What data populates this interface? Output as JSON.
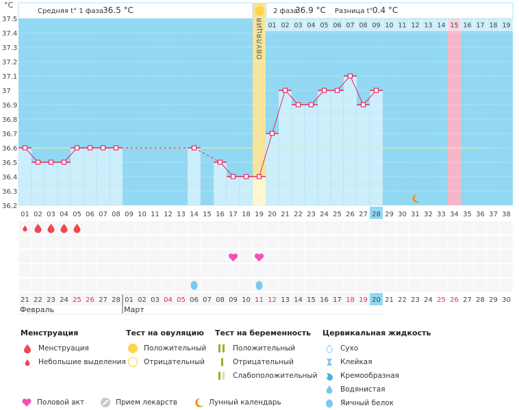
{
  "chart_data": {
    "type": "line",
    "title": "",
    "unit_label": "°C",
    "ylabel": "°C",
    "xlabel": "",
    "ylim": [
      36.2,
      37.5
    ],
    "y_ticks": [
      "37.5",
      "37.4",
      "37.3",
      "37.2",
      "37.1",
      "37",
      "36.9",
      "36.8",
      "36.7",
      "36.6",
      "36.5",
      "36.4",
      "36.3",
      "36.2"
    ],
    "y_tick_values": [
      37.5,
      37.4,
      37.3,
      37.2,
      37.1,
      37.0,
      36.9,
      36.8,
      36.7,
      36.6,
      36.5,
      36.4,
      36.3,
      36.2
    ],
    "grid": true,
    "cycle_days": [
      "01",
      "02",
      "03",
      "04",
      "05",
      "06",
      "07",
      "08",
      "09",
      "10",
      "11",
      "12",
      "13",
      "14",
      "15",
      "16",
      "17",
      "18",
      "19",
      "20",
      "21",
      "22",
      "23",
      "24",
      "25",
      "26",
      "27",
      "28",
      "29",
      "30",
      "31",
      "32",
      "33",
      "34",
      "35",
      "36",
      "37",
      "38"
    ],
    "today_cycle_day": "28",
    "series": [
      {
        "name": "Базальная температура",
        "color": "#e8265e",
        "values": [
          36.6,
          36.5,
          36.5,
          36.5,
          36.6,
          36.6,
          36.6,
          36.6,
          null,
          null,
          null,
          null,
          null,
          36.6,
          null,
          36.5,
          36.4,
          36.4,
          36.4,
          36.7,
          37.0,
          36.9,
          36.9,
          37.0,
          37.0,
          37.1,
          36.9,
          37.0,
          null,
          null,
          null,
          null,
          null,
          null,
          null,
          null,
          null,
          null
        ]
      }
    ],
    "cover_line": {
      "value": 36.6,
      "from_day": "01",
      "to_day": "37",
      "color": "#f5e7a0"
    },
    "ovulation_day": "19",
    "ovulation_label": "ОВУЛЯЦИЯ",
    "phase2_day_labels": [
      "01",
      "02",
      "03",
      "04",
      "05",
      "06",
      "07",
      "08",
      "09",
      "10",
      "11",
      "12",
      "13",
      "14",
      "15",
      "16",
      "17",
      "18",
      "19"
    ],
    "expected_period_phase2_day": "15",
    "moon_day": "31",
    "header": {
      "phase1_label": "Средняя t° 1 фаза",
      "phase1_value": "36.5 °C",
      "phase2_label": "2 фаза",
      "phase2_value": "36.9 °C",
      "diff_label": "Разница t°",
      "diff_value": "0.4 °C"
    },
    "calendar_dates": [
      {
        "d": "21",
        "red": false
      },
      {
        "d": "22",
        "red": false
      },
      {
        "d": "23",
        "red": false
      },
      {
        "d": "24",
        "red": false
      },
      {
        "d": "25",
        "red": true
      },
      {
        "d": "26",
        "red": true
      },
      {
        "d": "27",
        "red": false
      },
      {
        "d": "28",
        "red": false
      },
      {
        "d": "01",
        "red": false
      },
      {
        "d": "02",
        "red": false
      },
      {
        "d": "03",
        "red": false
      },
      {
        "d": "04",
        "red": true
      },
      {
        "d": "05",
        "red": true
      },
      {
        "d": "06",
        "red": false
      },
      {
        "d": "07",
        "red": false
      },
      {
        "d": "08",
        "red": false
      },
      {
        "d": "09",
        "red": false
      },
      {
        "d": "10",
        "red": false
      },
      {
        "d": "11",
        "red": true
      },
      {
        "d": "12",
        "red": true
      },
      {
        "d": "13",
        "red": false
      },
      {
        "d": "14",
        "red": false
      },
      {
        "d": "15",
        "red": false
      },
      {
        "d": "16",
        "red": false
      },
      {
        "d": "17",
        "red": false
      },
      {
        "d": "18",
        "red": true
      },
      {
        "d": "19",
        "red": true
      },
      {
        "d": "20",
        "red": false
      },
      {
        "d": "21",
        "red": false
      },
      {
        "d": "22",
        "red": false
      },
      {
        "d": "23",
        "red": false
      },
      {
        "d": "24",
        "red": false
      },
      {
        "d": "25",
        "red": true
      },
      {
        "d": "26",
        "red": true
      },
      {
        "d": "27",
        "red": false
      },
      {
        "d": "28",
        "red": false
      },
      {
        "d": "29",
        "red": false
      },
      {
        "d": "30",
        "red": false
      }
    ],
    "today_calendar_date": "20",
    "months": [
      {
        "name": "Февраль",
        "start_index": 0
      },
      {
        "name": "Март",
        "start_index": 8
      }
    ],
    "markers": {
      "menstruation": [
        {
          "day": "01",
          "kind": "light"
        },
        {
          "day": "02",
          "kind": "heavy"
        },
        {
          "day": "03",
          "kind": "heavy"
        },
        {
          "day": "04",
          "kind": "heavy"
        },
        {
          "day": "05",
          "kind": "heavy"
        }
      ],
      "intercourse": [
        "17",
        "19"
      ],
      "cervical_fluid_egg_white": [
        "14",
        "19"
      ]
    }
  },
  "legend": {
    "menstruation": {
      "title": "Менструация",
      "items": [
        "Менструация",
        "Небольшие выделения"
      ]
    },
    "ovulation_test": {
      "title": "Тест на овуляцию",
      "items": [
        "Положительный",
        "Отрицательный"
      ]
    },
    "pregnancy_test": {
      "title": "Тест на беременность",
      "items": [
        "Положительный",
        "Отрицательный",
        "Слабоположительный"
      ]
    },
    "cervical_fluid": {
      "title": "Цервикальная жидкость",
      "items": [
        "Сухо",
        "Клейкая",
        "Кремообразная",
        "Водянистая",
        "Яичный белок"
      ]
    },
    "other": [
      "Половой акт",
      "Прием лекарств",
      "Лунный календарь"
    ]
  },
  "colors": {
    "plot_bg": "#92d8f2",
    "bar_fill": "#cceefb",
    "ovulation_band": "#f5e49a",
    "period_band": "#f7b6c8",
    "line": "#e8265e",
    "drop": "#f2464e",
    "heart": "#f252b4",
    "egg": "#7cc6ef",
    "moon": "#f29418",
    "sun": "#ffd54a",
    "preg_green": "#8ab71c",
    "preg_light": "#d2e6a6"
  }
}
